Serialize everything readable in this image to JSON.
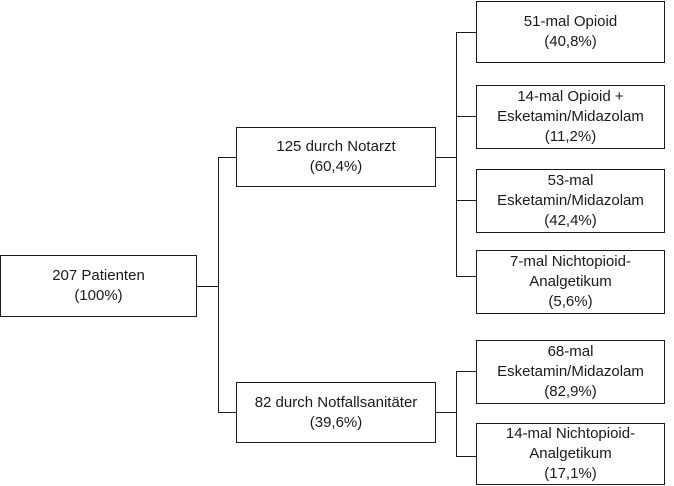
{
  "root": {
    "line1": "207 Patienten",
    "line2": "(100%)"
  },
  "notarzt": {
    "line1": "125 durch Notarzt",
    "line2": "(60,4%)",
    "children": [
      {
        "lines": [
          "51-mal Opioid",
          "(40,8%)"
        ]
      },
      {
        "lines": [
          "14-mal Opioid +",
          "Esketamin/Midazolam",
          "(11,2%)"
        ]
      },
      {
        "lines": [
          "53-mal",
          "Esketamin/Midazolam",
          "(42,4%)"
        ]
      },
      {
        "lines": [
          "7-mal Nichtopioid-",
          "Analgetikum",
          "(5,6%)"
        ]
      }
    ]
  },
  "sanitaeter": {
    "line1": "82 durch Notfallsanitäter",
    "line2": "(39,6%)",
    "children": [
      {
        "lines": [
          "68-mal",
          "Esketamin/Midazolam",
          "(82,9%)"
        ]
      },
      {
        "lines": [
          "14-mal Nichtopioid-",
          "Analgetikum",
          "(17,1%)"
        ]
      }
    ]
  }
}
